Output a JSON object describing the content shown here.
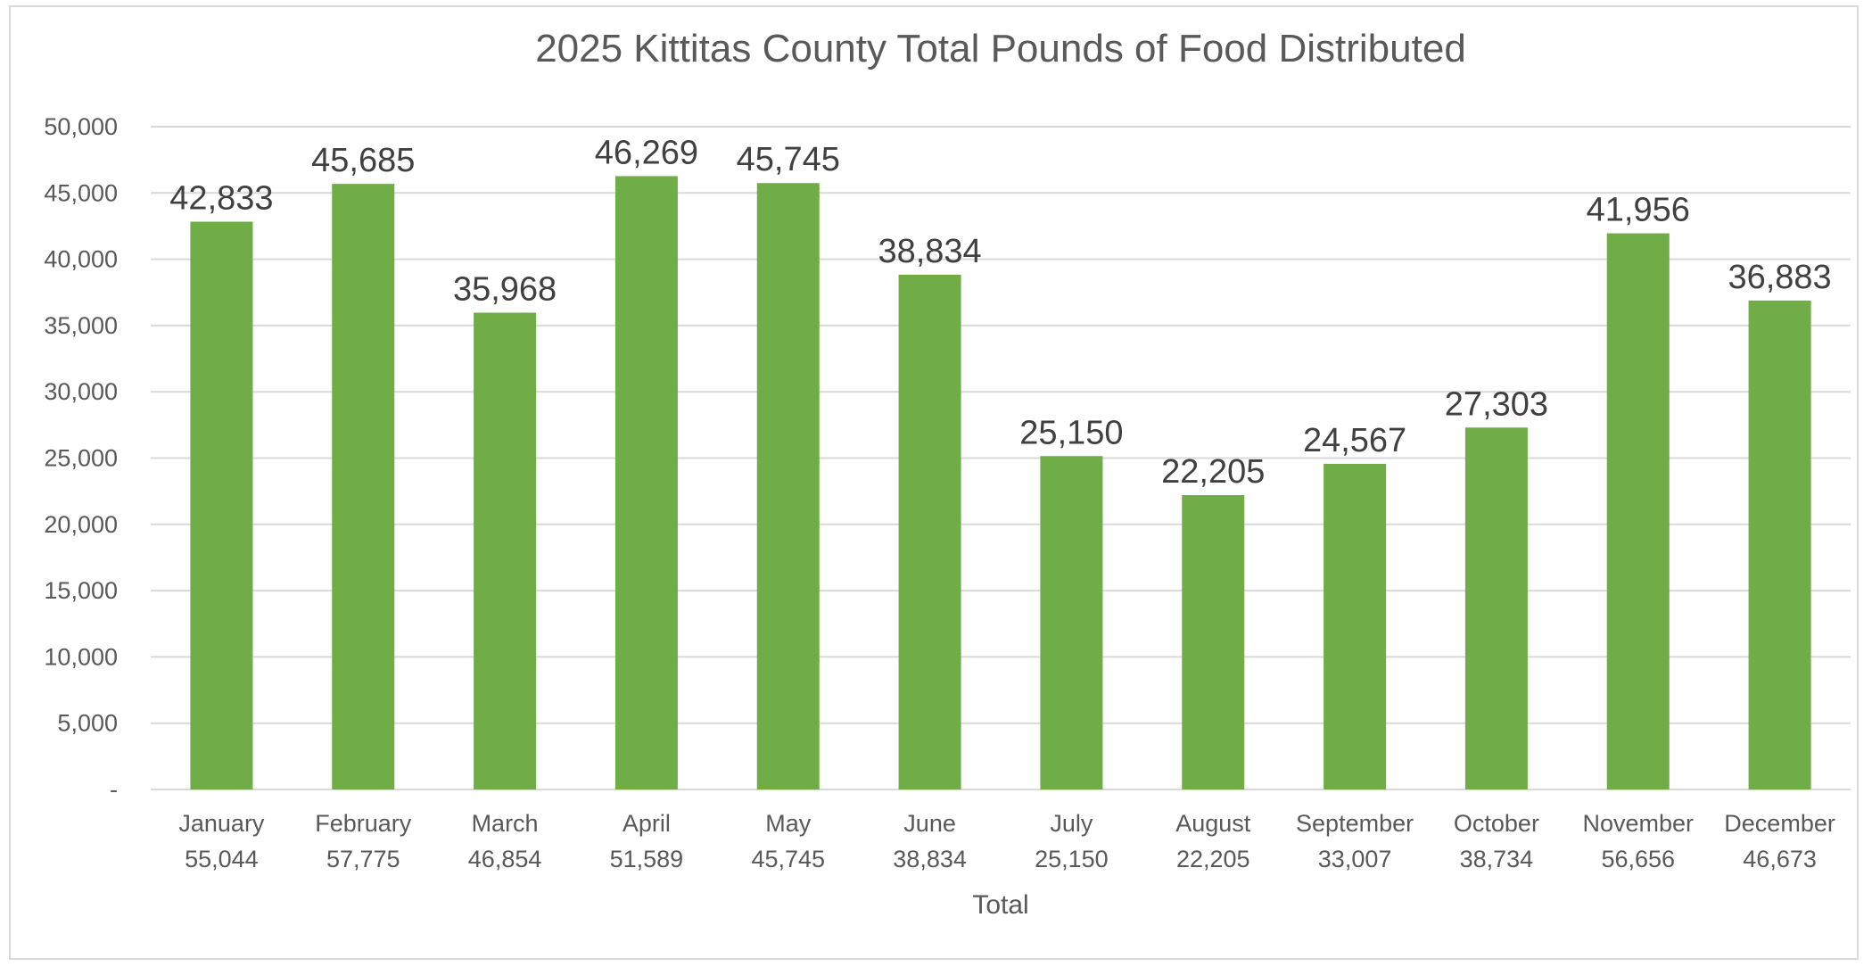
{
  "chart_data": {
    "type": "bar",
    "title": "2025 Kittitas County Total Pounds of Food Distributed",
    "xlabel": "Total",
    "ylabel": "",
    "categories": [
      "January",
      "February",
      "March",
      "April",
      "May",
      "June",
      "July",
      "August",
      "September",
      "October",
      "November",
      "December"
    ],
    "category_sublabels": [
      "55,044",
      "57,775",
      "46,854",
      "51,589",
      "45,745",
      "38,834",
      "25,150",
      "22,205",
      "33,007",
      "38,734",
      "56,656",
      "46,673"
    ],
    "values": [
      42833,
      45685,
      35968,
      46269,
      45745,
      38834,
      25150,
      22205,
      24567,
      27303,
      41956,
      36883
    ],
    "data_labels": [
      "42,833",
      "45,685",
      "35,968",
      "46,269",
      "45,745",
      "38,834",
      "25,150",
      "22,205",
      "24,567",
      "27,303",
      "41,956",
      "36,883"
    ],
    "ylim": [
      0,
      50000
    ],
    "yticks": [
      0,
      5000,
      10000,
      15000,
      20000,
      25000,
      30000,
      35000,
      40000,
      45000,
      50000
    ],
    "ytick_labels": [
      "-",
      "5,000",
      "10,000",
      "15,000",
      "20,000",
      "25,000",
      "30,000",
      "35,000",
      "40,000",
      "45,000",
      "50,000"
    ],
    "grid": true,
    "legend": "none",
    "colors": {
      "bar": "#70ad47",
      "grid": "#d9d9d9",
      "text": "#595959",
      "data_label": "#404040"
    }
  }
}
